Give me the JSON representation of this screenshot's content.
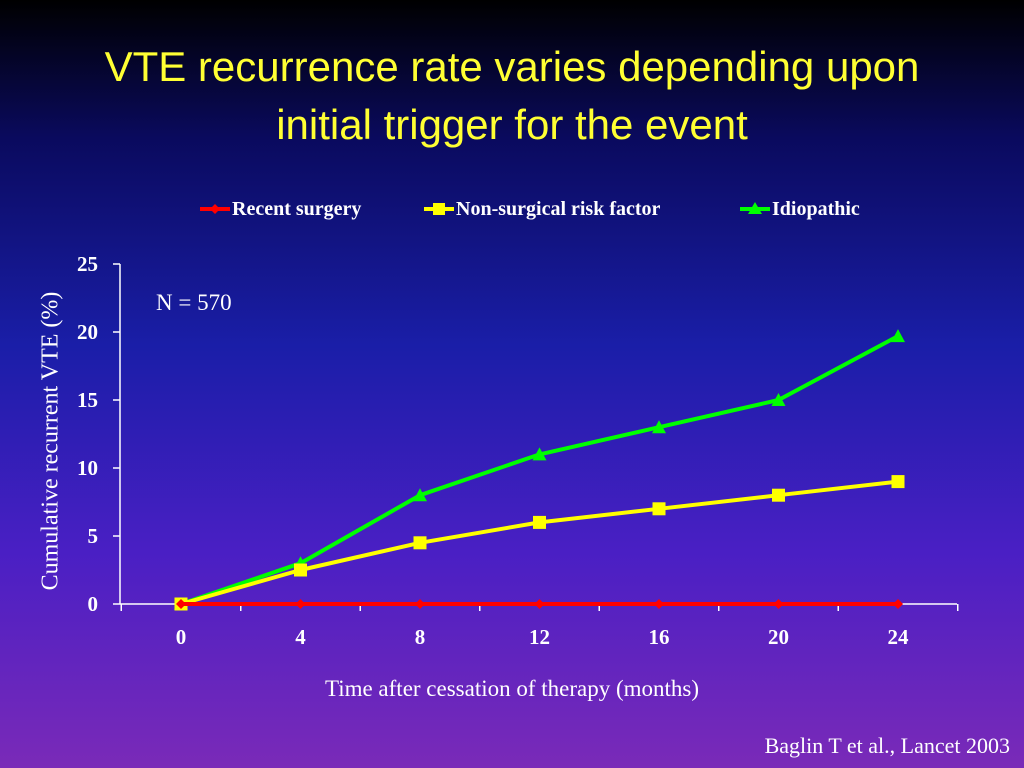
{
  "title": {
    "line1": "VTE recurrence rate varies depending upon",
    "line2": "initial trigger for the event"
  },
  "annotation": "N = 570",
  "citation": "Baglin T et al., Lancet 2003",
  "colors": {
    "title": "#ffff33",
    "text": "#ffffff",
    "axis": "#ffffff"
  },
  "chart_data": {
    "type": "line",
    "xlabel": "Time after cessation of therapy (months)",
    "ylabel": "Cumulative recurrent VTE (%)",
    "x": [
      0,
      4,
      8,
      12,
      16,
      20,
      24
    ],
    "x_ticks": [
      "0",
      "4",
      "8",
      "12",
      "16",
      "20",
      "24"
    ],
    "y_ticks": [
      "0",
      "5",
      "10",
      "15",
      "20",
      "25"
    ],
    "ylim": [
      0,
      25
    ],
    "grid": false,
    "legend_position": "top",
    "series": [
      {
        "name": "Recent surgery",
        "color": "#ff0000",
        "marker": "diamond",
        "values": [
          0,
          0,
          0,
          0,
          0,
          0,
          0
        ]
      },
      {
        "name": "Non-surgical risk factor",
        "color": "#ffff00",
        "marker": "square",
        "values": [
          0,
          2.5,
          4.5,
          6,
          7,
          8,
          9
        ]
      },
      {
        "name": "Idiopathic",
        "color": "#00ff00",
        "marker": "triangle",
        "values": [
          0,
          3,
          8,
          11,
          13,
          15,
          19.7
        ]
      }
    ]
  }
}
